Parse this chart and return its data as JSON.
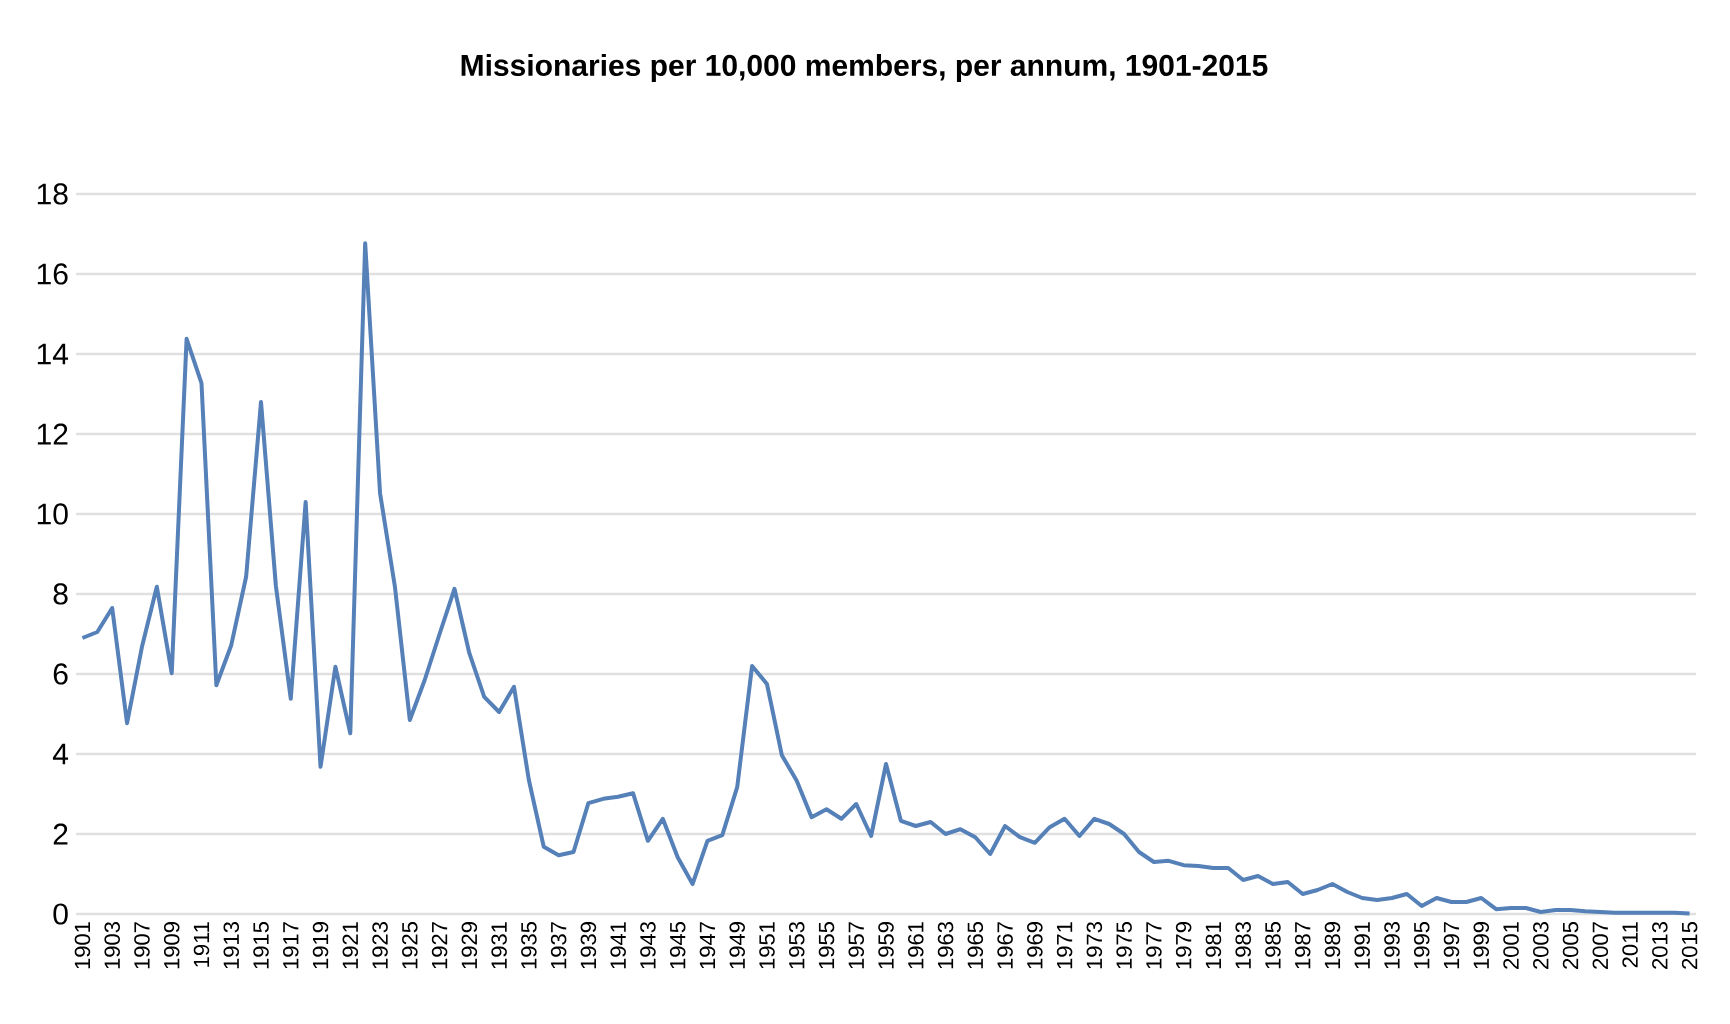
{
  "chart_data": {
    "type": "line",
    "title": "Missionaries per 10,000 members, per annum, 1901-2015",
    "categories": [
      "1901",
      null,
      "1903",
      null,
      "1907",
      null,
      "1909",
      null,
      "1911",
      null,
      "1913",
      null,
      "1915",
      null,
      "1917",
      null,
      "1919",
      null,
      "1921",
      null,
      "1923",
      null,
      "1925",
      null,
      "1927",
      null,
      "1929",
      null,
      "1931",
      null,
      "1935",
      null,
      "1937",
      null,
      "1939",
      null,
      "1941",
      null,
      "1943",
      null,
      "1945",
      null,
      "1947",
      null,
      "1949",
      null,
      "1951",
      null,
      "1953",
      null,
      "1955",
      null,
      "1957",
      null,
      "1959",
      null,
      "1961",
      null,
      "1963",
      null,
      "1965",
      null,
      "1967",
      null,
      "1969",
      null,
      "1971",
      null,
      "1973",
      null,
      "1975",
      null,
      "1977",
      null,
      "1979",
      null,
      "1981",
      null,
      "1983",
      null,
      "1985",
      null,
      "1987",
      null,
      "1989",
      null,
      "1991",
      null,
      "1993",
      null,
      "1995",
      null,
      "1997",
      null,
      "1999",
      null,
      "2001",
      null,
      "2003",
      null,
      "2005",
      null,
      "2007",
      null,
      "2011",
      null,
      "2013",
      null,
      "2015"
    ],
    "series": [
      {
        "color": "#5580b8",
        "values": [
          6.9,
          7.05,
          7.65,
          4.77,
          6.68,
          8.18,
          6.02,
          14.38,
          13.27,
          5.72,
          6.72,
          8.43,
          12.8,
          8.2,
          5.38,
          10.3,
          3.68,
          6.18,
          4.52,
          16.77,
          10.52,
          8.18,
          4.85,
          5.85,
          7.0,
          8.13,
          6.52,
          5.43,
          5.05,
          5.68,
          3.35,
          1.68,
          1.47,
          1.55,
          2.77,
          2.88,
          2.93,
          3.02,
          1.83,
          2.38,
          1.42,
          0.75,
          1.83,
          1.97,
          3.17,
          6.2,
          5.75,
          3.97,
          3.33,
          2.42,
          2.62,
          2.38,
          2.75,
          1.95,
          3.75,
          2.33,
          2.2,
          2.3,
          2.0,
          2.12,
          1.92,
          1.5,
          2.2,
          1.92,
          1.78,
          2.17,
          2.38,
          1.95,
          2.38,
          2.25,
          2.0,
          1.55,
          1.3,
          1.33,
          1.22,
          1.2,
          1.15,
          1.15,
          0.85,
          0.95,
          0.75,
          0.8,
          0.5,
          0.6,
          0.75,
          0.55,
          0.4,
          0.35,
          0.4,
          0.5,
          0.2,
          0.4,
          0.3,
          0.3,
          0.4,
          0.12,
          0.15,
          0.15,
          0.05,
          0.1,
          0.1,
          0.07,
          0.05,
          0.03,
          0.03,
          0.03,
          0.03,
          0.03,
          0.01
        ]
      }
    ],
    "ylim": [
      0,
      18
    ],
    "yticks": [
      0,
      2,
      4,
      6,
      8,
      10,
      12,
      14,
      16,
      18
    ],
    "grid": "y"
  }
}
